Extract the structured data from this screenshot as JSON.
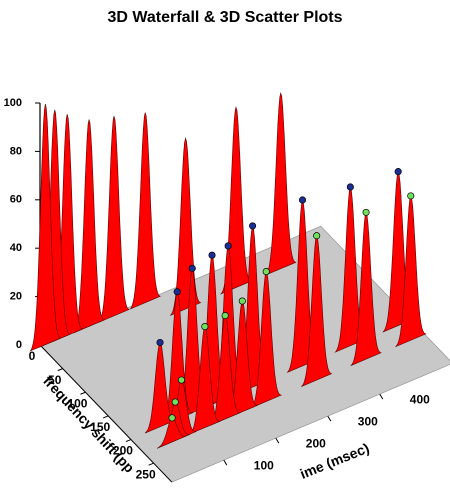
{
  "chart_data": {
    "type": "waterfall3d",
    "title": "3D Waterfall & 3D Scatter Plots",
    "xlabel": "frequency shift (pp",
    "ylabel": "ime (msec)",
    "zlim": [
      0,
      100
    ],
    "zticks": [
      0,
      20,
      40,
      60,
      80,
      100
    ],
    "frequency_ticks": [
      0,
      50,
      100,
      150,
      200,
      250
    ],
    "time_ticks": [
      100,
      200,
      300,
      400
    ],
    "peak_color": "#ff0000",
    "peaks": {
      "frequency": [
        5,
        5,
        5,
        5,
        5,
        5,
        40,
        40,
        40
      ],
      "time": [
        6,
        24,
        48,
        90,
        138,
        198,
        245,
        342,
        428
      ],
      "values": [
        100,
        96,
        92,
        86,
        83,
        79,
        71,
        75,
        73
      ]
    },
    "scatter": [
      {
        "color": "#1c2e96",
        "frequency": [
          200,
          200,
          200,
          200,
          200,
          200,
          200,
          200,
          200
        ],
        "time": [
          56,
          89,
          118,
          156,
          187,
          234,
          330,
          422,
          514
        ],
        "values": [
          35,
          53,
          60,
          62,
          63,
          67,
          69,
          66,
          64
        ]
      },
      {
        "color": "#6ee05a",
        "frequency": [
          230,
          230,
          230,
          230,
          230,
          230,
          230,
          230,
          230,
          230
        ],
        "time": [
          53,
          59,
          71,
          116,
          155,
          188,
          234,
          331,
          426,
          512
        ],
        "values": [
          10,
          16,
          24,
          42,
          43,
          46,
          54,
          60,
          61,
          60
        ]
      }
    ]
  }
}
